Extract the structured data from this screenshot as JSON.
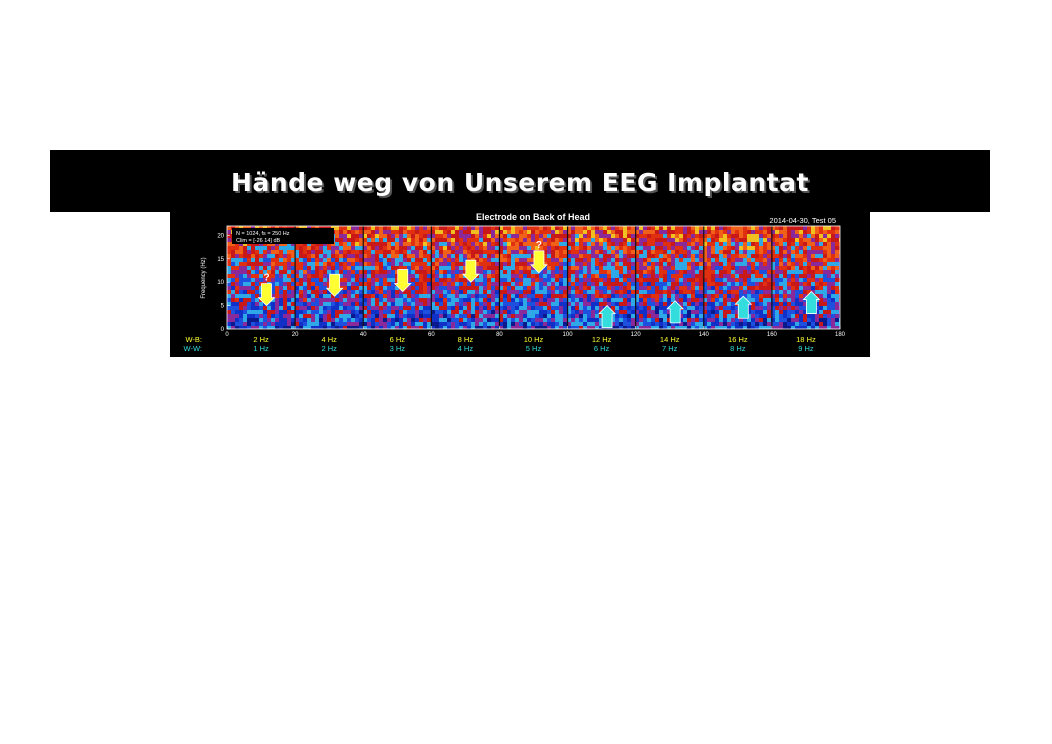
{
  "banner": {
    "title": "Hände weg von Unserem EEG Implantat"
  },
  "chart_data": {
    "type": "heatmap",
    "title": "Electrode on Back of Head",
    "subtitle": "2014-04-30, Test 05",
    "ylabel": "Frequency (Hz)",
    "xlim": [
      0,
      180
    ],
    "ylim": [
      0,
      22
    ],
    "x_ticks": [
      "0",
      "20",
      "40",
      "60",
      "80",
      "100",
      "120",
      "140",
      "160",
      "180"
    ],
    "y_ticks": [
      "0",
      "5",
      "10",
      "15",
      "20"
    ],
    "info_box": [
      "N = 1024, fs = 250 Hz",
      "Clim = [-26 14] dB"
    ],
    "row_labels": {
      "wb": "W-B:",
      "ww": "W-W:"
    },
    "colors": {
      "wb_text": "#ffff33",
      "ww_text": "#33dddd",
      "arrow_yellow": "#ffff33",
      "arrow_cyan": "#33dddd"
    },
    "segments": [
      {
        "wb": "2 Hz",
        "ww": "1 Hz",
        "arrow": "down",
        "arrow_freq": 5,
        "question": true
      },
      {
        "wb": "4 Hz",
        "ww": "2 Hz",
        "arrow": "down",
        "arrow_freq": 7,
        "question": false
      },
      {
        "wb": "6 Hz",
        "ww": "3 Hz",
        "arrow": "down",
        "arrow_freq": 8,
        "question": false
      },
      {
        "wb": "8 Hz",
        "ww": "4 Hz",
        "arrow": "down",
        "arrow_freq": 10,
        "question": false
      },
      {
        "wb": "10 Hz",
        "ww": "5 Hz",
        "arrow": "down",
        "arrow_freq": 12,
        "question": true
      },
      {
        "wb": "12 Hz",
        "ww": "6 Hz",
        "arrow": "up",
        "arrow_freq": 5,
        "question": false
      },
      {
        "wb": "14 Hz",
        "ww": "7 Hz",
        "arrow": "up",
        "arrow_freq": 6,
        "question": false
      },
      {
        "wb": "16 Hz",
        "ww": "8 Hz",
        "arrow": "up",
        "arrow_freq": 7,
        "question": false
      },
      {
        "wb": "18 Hz",
        "ww": "9 Hz",
        "arrow": "up",
        "arrow_freq": 8,
        "question": false
      }
    ]
  }
}
